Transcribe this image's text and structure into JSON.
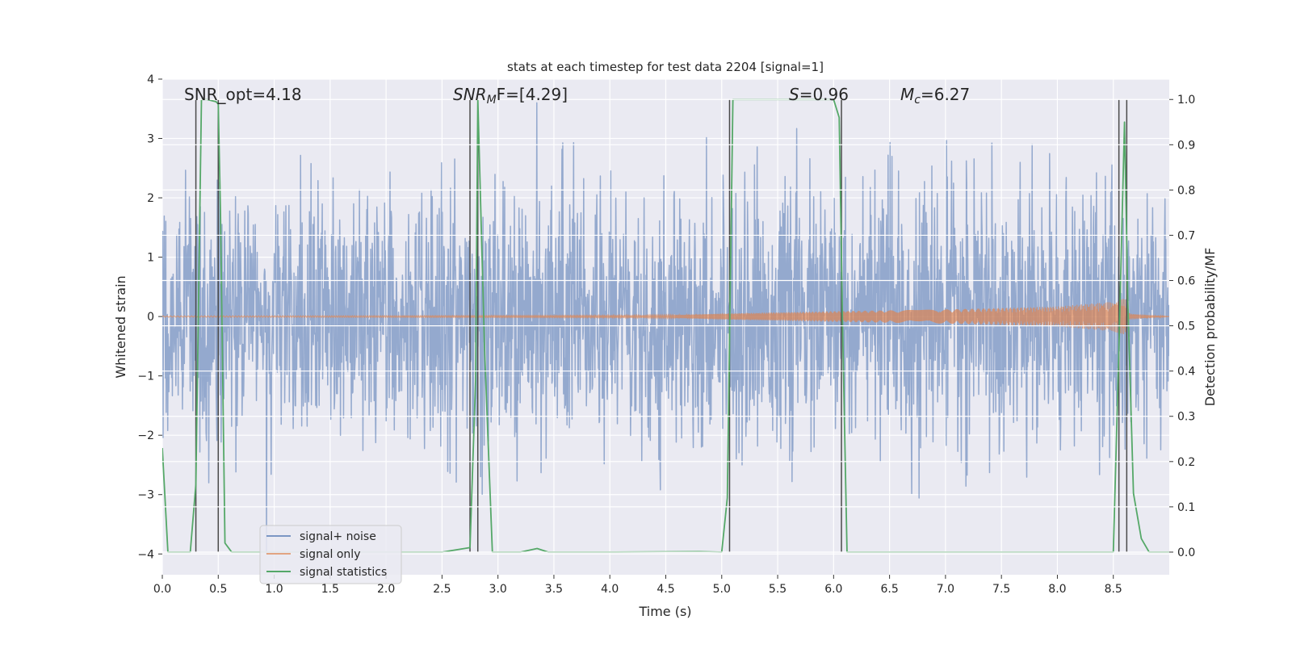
{
  "chart_data": {
    "type": "line",
    "title": "stats at each timestep for test data 2204 [signal=1]",
    "xlabel": "Time (s)",
    "ylabel": "Whitened strain",
    "y2label": "Detection probability/MF",
    "xlim": [
      0.0,
      9.0
    ],
    "ylim": [
      -4.35,
      4.0
    ],
    "y2lim": [
      -0.05,
      1.045
    ],
    "xticks": [
      "0.0",
      "0.5",
      "1.0",
      "1.5",
      "2.0",
      "2.5",
      "3.0",
      "3.5",
      "4.0",
      "4.5",
      "5.0",
      "5.5",
      "6.0",
      "6.5",
      "7.0",
      "7.5",
      "8.0",
      "8.5"
    ],
    "yticks": [
      "4",
      "3",
      "2",
      "1",
      "0",
      "−1",
      "−2",
      "−3",
      "−4"
    ],
    "y2ticks": [
      "1.0",
      "0.9",
      "0.8",
      "0.7",
      "0.6",
      "0.5",
      "0.4",
      "0.3",
      "0.2",
      "0.1",
      "0.0"
    ],
    "annotations": {
      "snr_opt": "SNR_opt=4.18",
      "snr_mf_sym": "SNR",
      "snr_mf_sub": "M",
      "snr_mf_rest": "F=[4.29]",
      "s_sym": "S",
      "s_rest": "=0.96",
      "mc_sym": "M",
      "mc_sub": "c",
      "mc_rest": "=6.27"
    },
    "legend": {
      "location": "lower-left",
      "entries": [
        "signal+ noise",
        "signal only",
        "signal statistics"
      ]
    },
    "series": [
      {
        "name": "signal+ noise",
        "color": "#4c72b0",
        "description": "whitened noisy strain, spans roughly -4 to 3.6 across the full 0-9 s window"
      },
      {
        "name": "signal only",
        "color": "#dd8452",
        "envelope_t": [
          0.0,
          4.5,
          5.0,
          6.0,
          7.0,
          8.0,
          8.5,
          8.6,
          8.65,
          9.0
        ],
        "envelope_amp": [
          0.01,
          0.02,
          0.05,
          0.09,
          0.12,
          0.17,
          0.25,
          0.32,
          0.05,
          0.0
        ]
      },
      {
        "name": "signal statistics",
        "color": "#55a868",
        "x": [
          0.0,
          0.05,
          0.25,
          0.3,
          0.35,
          0.4,
          0.48,
          0.5,
          0.52,
          0.56,
          0.62,
          0.7,
          1.5,
          2.5,
          2.75,
          2.8,
          2.82,
          2.88,
          2.95,
          3.2,
          3.35,
          3.45,
          4.0,
          4.8,
          5.0,
          5.05,
          5.1,
          5.5,
          6.0,
          6.05,
          6.08,
          6.12,
          6.5,
          8.5,
          8.55,
          8.6,
          8.63,
          8.68,
          8.75,
          8.82,
          9.0
        ],
        "y": [
          0.23,
          0.0,
          0.0,
          0.15,
          1.0,
          1.0,
          0.995,
          0.99,
          0.75,
          0.02,
          0.0,
          0.0,
          0.0,
          0.0,
          0.01,
          0.38,
          1.0,
          0.45,
          0.0,
          0.0,
          0.008,
          0.0,
          0.0,
          0.001,
          0.0,
          0.12,
          1.0,
          1.0,
          1.0,
          0.96,
          0.5,
          0.0,
          0.0,
          0.0,
          0.45,
          0.95,
          0.55,
          0.13,
          0.03,
          0.0,
          0.0
        ]
      }
    ],
    "markers": {
      "color": "#4a4a4a",
      "x": [
        0.3,
        0.5,
        2.75,
        2.82,
        5.07,
        6.07,
        8.55,
        8.62
      ]
    }
  }
}
